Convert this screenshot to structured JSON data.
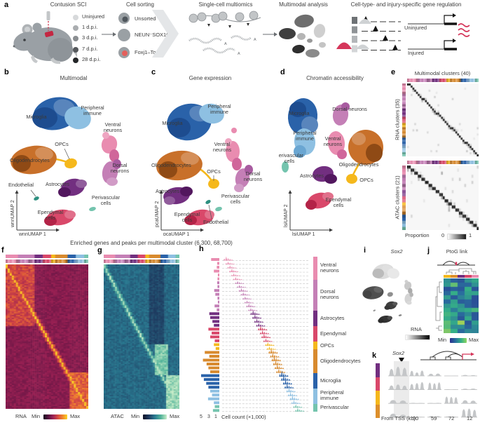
{
  "panels": {
    "a": {
      "label": "a",
      "sci_title": "Contusion SCI",
      "timepoints": [
        {
          "label": "Uninjured",
          "color": "#d7d9db"
        },
        {
          "label": "1 d.p.i.",
          "color": "#aaadb0"
        },
        {
          "label": "3 d.p.i.",
          "color": "#8a8e91"
        },
        {
          "label": "7 d.p.i.",
          "color": "#55585c"
        },
        {
          "label": "28 d.p.i.",
          "color": "#232527"
        }
      ],
      "sorting": {
        "title": "Cell sorting",
        "items": [
          "Unsorted",
          "NEUN⁻SOX10⁻",
          "Foxj1–Tom"
        ]
      },
      "multiomics_title": "Single-cell multiomics",
      "polya": "A",
      "analysis_title": "Multimodal analysis",
      "regulation_title": "Cell-type- and injury-specific gene regulation",
      "uninjured": "Uninjured",
      "injured": "Injured"
    },
    "b": {
      "label": "b",
      "title": "Multimodal",
      "x_axis": "wnnUMAP 1",
      "y_axis": "wnnUMAP 2",
      "annotations": [
        "Microglia",
        "Peripheral immune",
        "Ventral neurons",
        "OPCs",
        "Oligodendrocytes",
        "Dorsal neurons",
        "Astrocytes",
        "Endothelial",
        "Perivascular cells",
        "Ependymal cells"
      ]
    },
    "c": {
      "label": "c",
      "title": "Gene expression",
      "x_axis": "pcaUMAP 1",
      "y_axis": "pcaUMAP 2",
      "annotations": [
        "Microglia",
        "Peripheral immune",
        "Ventral neurons",
        "OPCs",
        "Oligodendrocytes",
        "Dorsal neurons",
        "Astrocytes",
        "Endothelial",
        "Perivascular cells",
        "Ependymal cells"
      ]
    },
    "d": {
      "label": "d",
      "title": "Chromatin accessibility",
      "x_axis": "lsiUMAP 1",
      "y_axis": "lsiUMAP 2",
      "annotations": [
        "Microglia",
        "Dorsal neurons",
        "Peripheral immune",
        "Ventral neurons",
        "Oligodendrocytes",
        "Perivascular cells",
        "Astrocytes",
        "OPCs",
        "Ependymal cells"
      ]
    },
    "e": {
      "label": "e",
      "title": "Multimodal clusters (40)",
      "rna_axis": "RNA clusters (35)",
      "atac_axis": "ATAC clusters (21)",
      "legend_label": "Proportion",
      "legend_min": "0",
      "legend_max": "1",
      "n_multimodal": 40,
      "n_rna": 35,
      "n_atac": 21
    },
    "fg_title": "Enriched genes and peaks per multimodal cluster (6,300, 68,700)",
    "f": {
      "label": "f",
      "legend_name": "RNA",
      "legend_min": "Min",
      "legend_max": "Max"
    },
    "g": {
      "label": "g",
      "legend_name": "ATAC",
      "legend_min": "Min",
      "legend_max": "Max"
    },
    "h": {
      "label": "h",
      "x_ticks": [
        "5",
        "3",
        "1"
      ],
      "x_label": "Cell count (×1,000)",
      "classes": [
        {
          "name": "Ventral neurons",
          "rows": 6,
          "color": "#e98cb0"
        },
        {
          "name": "Dorsal neurons",
          "rows": 8,
          "color": "#c47fb6"
        },
        {
          "name": "Astrocytes",
          "rows": 4,
          "color": "#722f80"
        },
        {
          "name": "Ependymal",
          "rows": 4,
          "color": "#d9486a"
        },
        {
          "name": "OPCs",
          "rows": 2,
          "color": "#f5b81c"
        },
        {
          "name": "Oligodendrocytes",
          "rows": 6,
          "color": "#d88a2e"
        },
        {
          "name": "Microglia",
          "rows": 4,
          "color": "#2a62a9"
        },
        {
          "name": "Peripheral immune",
          "rows": 4,
          "color": "#8ec0e2"
        },
        {
          "name": "Perivascular",
          "rows": 2,
          "color": "#74c4ae"
        }
      ],
      "rows": [
        [
          0.45,
          0.02
        ],
        [
          0.12,
          0.045
        ],
        [
          0.14,
          0.07
        ],
        [
          0.3,
          0.095
        ],
        [
          0.08,
          0.12
        ],
        [
          0.1,
          0.145
        ],
        [
          0.12,
          0.17
        ],
        [
          0.1,
          0.195
        ],
        [
          0.28,
          0.22
        ],
        [
          0.22,
          0.245
        ],
        [
          0.1,
          0.27
        ],
        [
          0.08,
          0.295
        ],
        [
          0.26,
          0.32
        ],
        [
          0.14,
          0.345
        ],
        [
          0.55,
          0.375
        ],
        [
          0.5,
          0.4
        ],
        [
          0.38,
          0.425
        ],
        [
          0.3,
          0.45
        ],
        [
          0.6,
          0.475
        ],
        [
          0.42,
          0.5
        ],
        [
          0.5,
          0.52
        ],
        [
          0.25,
          0.545
        ],
        [
          0.3,
          0.57
        ],
        [
          0.2,
          0.59
        ],
        [
          0.8,
          0.615
        ],
        [
          0.55,
          0.635
        ],
        [
          0.9,
          0.655
        ],
        [
          0.7,
          0.675
        ],
        [
          0.6,
          0.695
        ],
        [
          0.5,
          0.715
        ],
        [
          1.0,
          0.755
        ],
        [
          0.85,
          0.78
        ],
        [
          0.72,
          0.805
        ],
        [
          0.6,
          0.825
        ],
        [
          0.5,
          0.85
        ],
        [
          0.4,
          0.87
        ],
        [
          0.62,
          0.895
        ],
        [
          0.3,
          0.915
        ],
        [
          0.25,
          0.94
        ],
        [
          0.35,
          0.965
        ]
      ]
    },
    "i": {
      "label": "i",
      "title": "Sox2",
      "legend": "RNA"
    },
    "j": {
      "label": "j",
      "title": "PtoG link",
      "legend_min": "Min",
      "legend_max": "Max"
    },
    "k": {
      "label": "k",
      "gene": "Sox2",
      "x_label": "From TSS (kb):",
      "distances": [
        "90",
        "59",
        "72",
        "12"
      ],
      "track_colors": [
        "#722f80",
        "#d9486a",
        "#f5b81c",
        "#dd8f2b"
      ],
      "tracks": [
        [
          0.95,
          0.55,
          0.35,
          0.04,
          0.12
        ],
        [
          0.55,
          0.8,
          0.85,
          0.04,
          0.1
        ],
        [
          0.4,
          0.06,
          0.06,
          0.85,
          0.35
        ],
        [
          0.35,
          0.05,
          0.12,
          0.08,
          0.9
        ]
      ]
    }
  },
  "colors": {
    "microglia": "#2a62a9",
    "peripheral": "#8ec0e2",
    "ventral": "#e98cb0",
    "dorsal": "#c47fb6",
    "astro": "#722f80",
    "ependymal": "#d9486a",
    "opc": "#f5b81c",
    "oligo": "#c8702a",
    "endothelial": "#2d8f7f",
    "perivascular": "#74c4ae",
    "injured_red": "#d5365a"
  }
}
